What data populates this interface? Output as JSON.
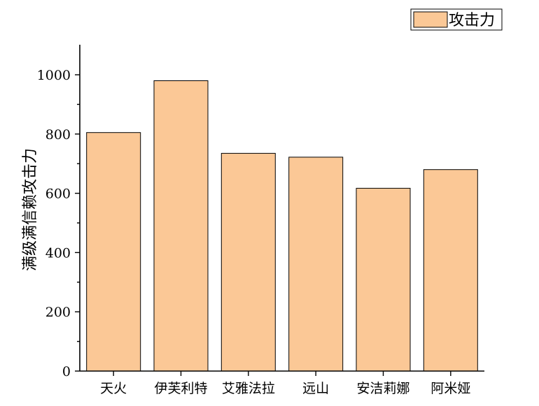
{
  "chart_data": {
    "type": "bar",
    "categories": [
      "天火",
      "伊芙利特",
      "艾雅法拉",
      "远山",
      "安洁莉娜",
      "阿米娅"
    ],
    "series": [
      {
        "name": "攻击力",
        "values": [
          805,
          980,
          735,
          722,
          617,
          680
        ],
        "color": "#FBC896"
      }
    ],
    "ylabel": "满级满信赖攻击力",
    "xlabel": "",
    "ylim": [
      0,
      1100
    ],
    "yticks": [
      0,
      200,
      400,
      600,
      800,
      1000
    ],
    "yticks_labels": [
      "0",
      "200",
      "400",
      "600",
      "800",
      "1000"
    ],
    "grid": false,
    "legend_position": "top-right",
    "colors": {
      "bar_fill": "#FBC896",
      "bar_stroke": "#000000",
      "axis": "#000000",
      "text": "#000000"
    }
  }
}
